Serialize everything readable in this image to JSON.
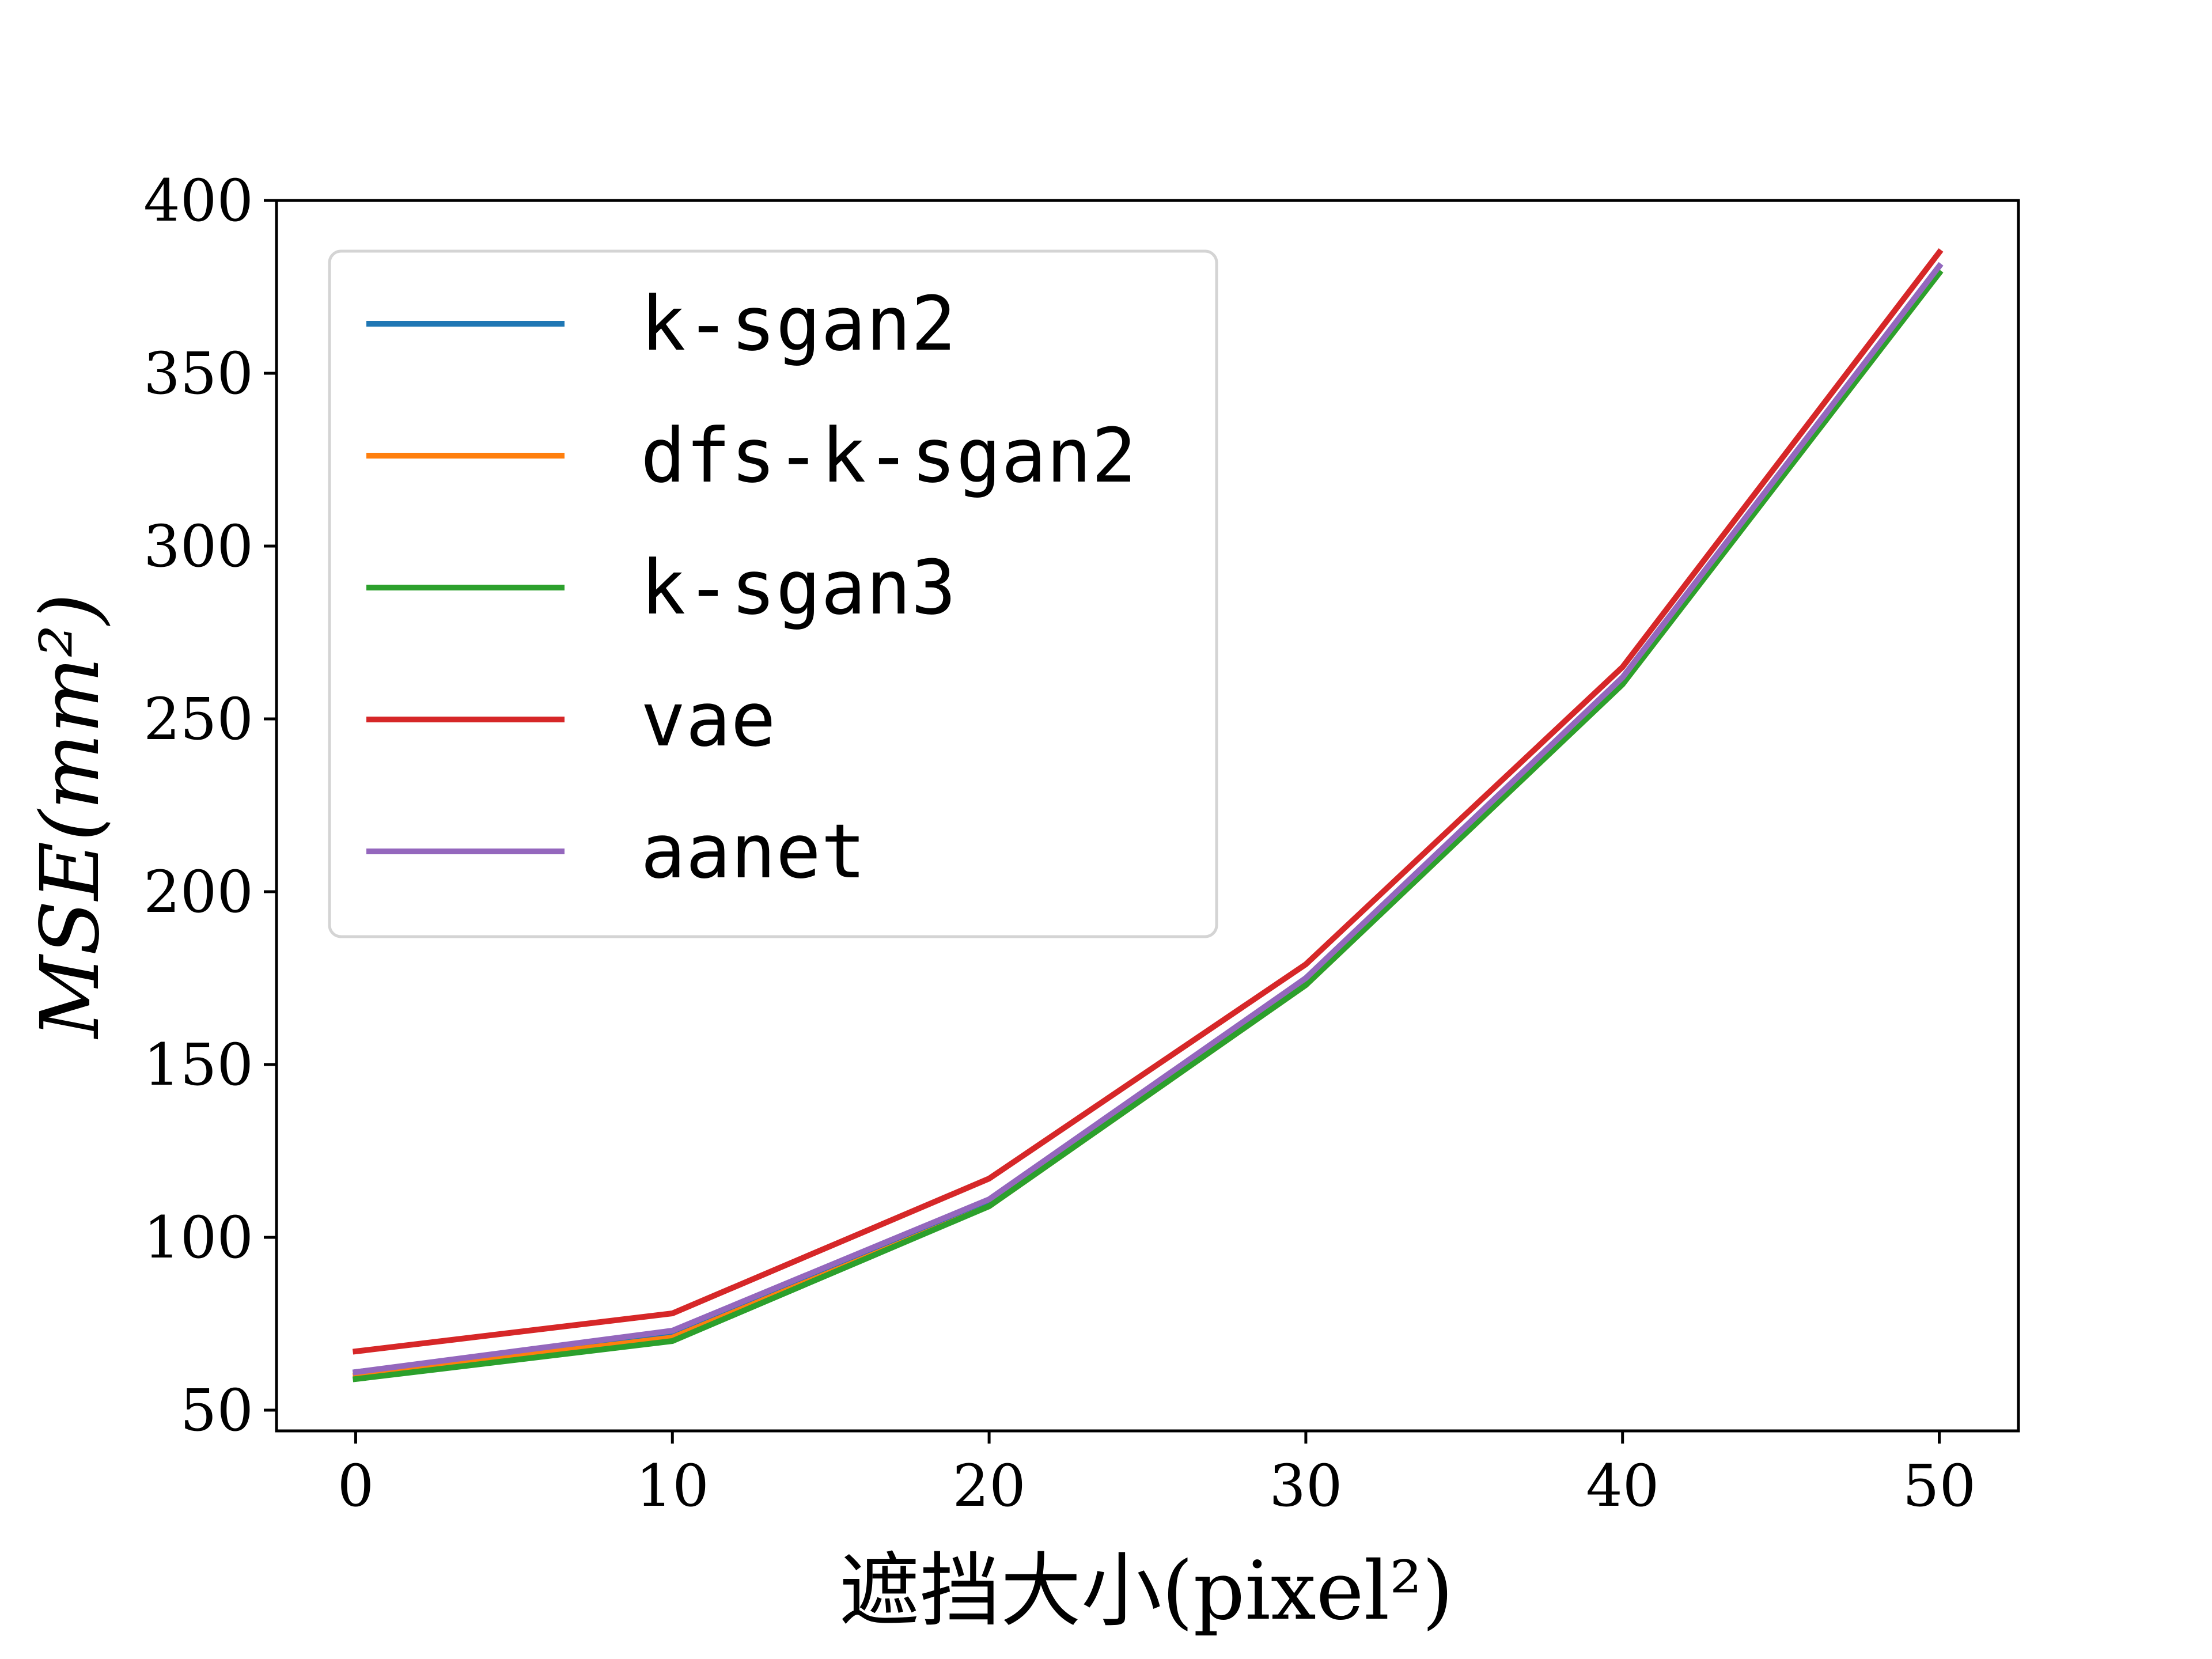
{
  "chart_data": {
    "type": "line",
    "title": "",
    "xlabel": "遮挡大小(pixel²)",
    "ylabel": "MSE(mm²)",
    "x": [
      0,
      10,
      20,
      30,
      40,
      50
    ],
    "xlim": [
      -2.5,
      52.5
    ],
    "ylim": [
      44,
      400
    ],
    "xticks": [
      0,
      10,
      20,
      30,
      40,
      50
    ],
    "yticks": [
      50,
      100,
      150,
      200,
      250,
      300,
      350,
      400
    ],
    "grid": false,
    "legend_position": "upper-left",
    "series": [
      {
        "name": "k-sgan2",
        "color": "#1f77b4",
        "values": [
          61,
          72,
          110,
          175,
          262,
          381
        ]
      },
      {
        "name": "dfs-k-sgan2",
        "color": "#ff7f0e",
        "values": [
          60,
          71,
          109,
          173,
          260,
          379
        ]
      },
      {
        "name": "k-sgan3",
        "color": "#2ca02c",
        "values": [
          59,
          70,
          109,
          173,
          260,
          379
        ]
      },
      {
        "name": "vae",
        "color": "#d62728",
        "values": [
          67,
          78,
          117,
          179,
          265,
          385
        ]
      },
      {
        "name": "aanet",
        "color": "#9467bd",
        "values": [
          61,
          73,
          111,
          175,
          262,
          381
        ]
      }
    ]
  }
}
